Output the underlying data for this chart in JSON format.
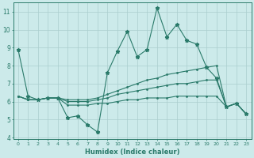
{
  "xlabel": "Humidex (Indice chaleur)",
  "x": [
    0,
    1,
    2,
    3,
    4,
    5,
    6,
    7,
    8,
    9,
    10,
    11,
    12,
    13,
    14,
    15,
    16,
    17,
    18,
    19,
    20,
    21,
    22,
    23
  ],
  "line1": [
    8.9,
    6.3,
    6.1,
    6.2,
    6.2,
    5.1,
    5.2,
    4.7,
    4.3,
    7.6,
    8.8,
    9.9,
    8.5,
    8.9,
    11.2,
    9.6,
    10.3,
    9.4,
    9.2,
    7.9,
    7.3,
    5.7,
    5.9,
    5.3
  ],
  "line2": [
    6.3,
    6.1,
    6.1,
    6.2,
    6.2,
    6.1,
    6.1,
    6.1,
    6.2,
    6.4,
    6.6,
    6.8,
    7.0,
    7.2,
    7.3,
    7.5,
    7.6,
    7.7,
    7.8,
    7.9,
    8.0,
    5.7,
    5.9,
    5.3
  ],
  "line3": [
    6.3,
    6.1,
    6.1,
    6.2,
    6.2,
    6.0,
    6.0,
    6.0,
    6.1,
    6.2,
    6.4,
    6.5,
    6.6,
    6.7,
    6.8,
    6.9,
    7.0,
    7.0,
    7.1,
    7.2,
    7.2,
    5.7,
    5.9,
    5.3
  ],
  "line4": [
    6.3,
    6.1,
    6.1,
    6.2,
    6.2,
    5.8,
    5.8,
    5.8,
    5.9,
    5.9,
    6.0,
    6.1,
    6.1,
    6.2,
    6.2,
    6.2,
    6.3,
    6.3,
    6.3,
    6.3,
    6.3,
    5.7,
    5.9,
    5.3
  ],
  "line_color": "#2a7a6a",
  "bg_color": "#cceaea",
  "grid_color": "#aacece",
  "ylim": [
    3.9,
    11.5
  ],
  "xlim": [
    -0.5,
    23.5
  ],
  "yticks": [
    4,
    5,
    6,
    7,
    8,
    9,
    10,
    11
  ],
  "xticks": [
    0,
    1,
    2,
    3,
    4,
    5,
    6,
    7,
    8,
    9,
    10,
    11,
    12,
    13,
    14,
    15,
    16,
    17,
    18,
    19,
    20,
    21,
    22,
    23
  ]
}
